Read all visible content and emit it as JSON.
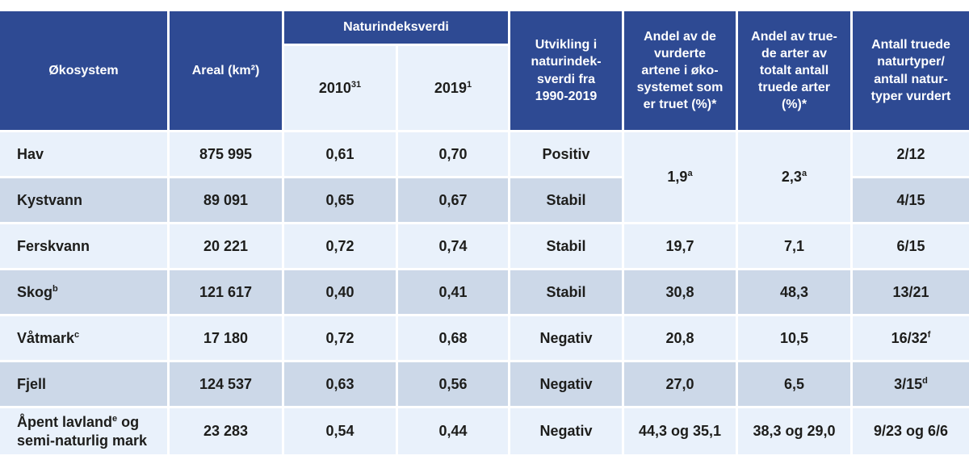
{
  "colors": {
    "header_blue": "#2e4a93",
    "row_light": "#e9f1fb",
    "row_alt": "#ccd8e8",
    "divider_white": "#ffffff",
    "text_dark": "#1d1d1b",
    "header_text": "#ffffff"
  },
  "table": {
    "header": {
      "okosystem": "Økosystem",
      "areal": "Areal (km²)",
      "naturindeksverdi": "Naturindeksverdi",
      "y2010": {
        "text": "2010",
        "sup": "31"
      },
      "y2019": {
        "text": "2019",
        "sup": "1"
      },
      "utvikling": "Utvikling i\nnaturindek-\nsverdi fra\n1990-2019",
      "andel_vurderte": "Andel av de\nvurderte\nartene i øko-\nsystemet som\ner truet (%)*",
      "andel_truede": "Andel av true-\nde arter av\ntotalt antall\ntruede arter\n(%)*",
      "antall_naturtyper": "Antall truede\nnaturtyper/\nantall natur-\ntyper vurdert"
    },
    "merged_cells": {
      "andel_vurderte_hav_kystvann": {
        "text": "1,9",
        "sup": "a"
      },
      "andel_truede_hav_kystvann": {
        "text": "2,3",
        "sup": "a"
      }
    },
    "rows": [
      {
        "name": {
          "pre": "Hav",
          "sup": "",
          "post": ""
        },
        "areal": "875 995",
        "v2010": "0,61",
        "v2019": "0,70",
        "utvikling": "Positiv",
        "andel_vurderte": "",
        "andel_truede": "",
        "antall": {
          "text": "2/12",
          "sup": ""
        }
      },
      {
        "name": {
          "pre": "Kystvann",
          "sup": "",
          "post": ""
        },
        "areal": "89 091",
        "v2010": "0,65",
        "v2019": "0,67",
        "utvikling": "Stabil",
        "andel_vurderte": "",
        "andel_truede": "",
        "antall": {
          "text": "4/15",
          "sup": ""
        }
      },
      {
        "name": {
          "pre": "Ferskvann",
          "sup": "",
          "post": ""
        },
        "areal": "20 221",
        "v2010": "0,72",
        "v2019": "0,74",
        "utvikling": "Stabil",
        "andel_vurderte": "19,7",
        "andel_truede": "7,1",
        "antall": {
          "text": "6/15",
          "sup": ""
        }
      },
      {
        "name": {
          "pre": "Skog",
          "sup": "b",
          "post": ""
        },
        "areal": "121 617",
        "v2010": "0,40",
        "v2019": "0,41",
        "utvikling": "Stabil",
        "andel_vurderte": "30,8",
        "andel_truede": "48,3",
        "antall": {
          "text": "13/21",
          "sup": ""
        }
      },
      {
        "name": {
          "pre": "Våtmark",
          "sup": "c",
          "post": ""
        },
        "areal": "17 180",
        "v2010": "0,72",
        "v2019": "0,68",
        "utvikling": "Negativ",
        "andel_vurderte": "20,8",
        "andel_truede": "10,5",
        "antall": {
          "text": "16/32",
          "sup": "f"
        }
      },
      {
        "name": {
          "pre": "Fjell",
          "sup": "",
          "post": ""
        },
        "areal": "124 537",
        "v2010": "0,63",
        "v2019": "0,56",
        "utvikling": "Negativ",
        "andel_vurderte": "27,0",
        "andel_truede": "6,5",
        "antall": {
          "text": "3/15",
          "sup": "d"
        }
      },
      {
        "name": {
          "pre": "Åpent lavland",
          "sup": "e",
          "post": " og semi-naturlig mark"
        },
        "areal": "23 283",
        "v2010": "0,54",
        "v2019": "0,44",
        "utvikling": "Negativ",
        "andel_vurderte": "44,3 og 35,1",
        "andel_truede": "38,3 og 29,0",
        "antall": {
          "text": "9/23 og 6/6",
          "sup": ""
        }
      }
    ]
  }
}
